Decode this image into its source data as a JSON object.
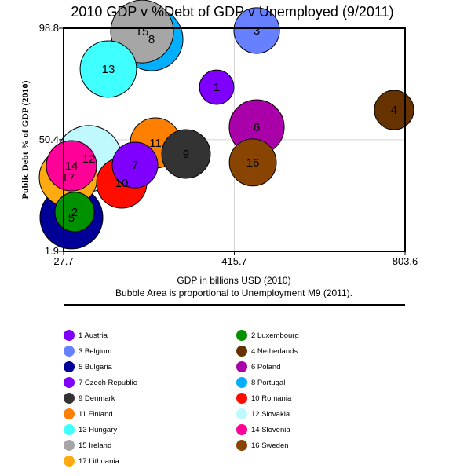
{
  "chart_data": {
    "type": "scatter",
    "subtype": "bubble",
    "title": "2010 GDP v %Debt of GDP v Unemployed (9/2011)",
    "xlabel": "GDP in billions USD (2010)",
    "xlabel_note": "Bubble Area is proportional to Unemployment M9 (2011).",
    "ylabel": "Public Debt % of GDP (2010)",
    "xlim": [
      27.7,
      803.6
    ],
    "ylim": [
      1.9,
      98.8
    ],
    "xticks": [
      "27.7",
      "415.7",
      "803.6"
    ],
    "yticks": [
      "1.9",
      "50.4",
      "98.8"
    ],
    "grid": true,
    "legend_placement": "bottom",
    "size_variable": "Unemployment M9 (2011), % (approximate)",
    "points": [
      {
        "id": 1,
        "name": "Austria",
        "gdp": 375.5,
        "debt": 73.2,
        "unemployment": 4.5,
        "color": "#7f00ff"
      },
      {
        "id": 2,
        "name": "Luxembourg",
        "gdp": 52.7,
        "debt": 19.0,
        "unemployment": 5.9,
        "color": "#009100"
      },
      {
        "id": 3,
        "name": "Belgium",
        "gdp": 466.5,
        "debt": 97.8,
        "unemployment": 7.9,
        "color": "#6680ff"
      },
      {
        "id": 4,
        "name": "Netherlands",
        "gdp": 778.6,
        "debt": 63.3,
        "unemployment": 5.9,
        "color": "#663300"
      },
      {
        "id": 5,
        "name": "Bulgaria",
        "gdp": 45.5,
        "debt": 16.6,
        "unemployment": 15.0,
        "color": "#000099"
      },
      {
        "id": 6,
        "name": "Poland",
        "gdp": 466.5,
        "debt": 55.8,
        "unemployment": 11.5,
        "color": "#aa00aa"
      },
      {
        "id": 7,
        "name": "Czech Republic",
        "gdp": 190.0,
        "debt": 39.4,
        "unemployment": 7.9,
        "color": "#8000ff"
      },
      {
        "id": 8,
        "name": "Portugal",
        "gdp": 227.5,
        "debt": 94.0,
        "unemployment": 15.0,
        "color": "#00b0ff"
      },
      {
        "id": 9,
        "name": "Denmark",
        "gdp": 305.9,
        "debt": 44.2,
        "unemployment": 9.0,
        "color": "#333333"
      },
      {
        "id": 10,
        "name": "Romania",
        "gdp": 159.7,
        "debt": 31.6,
        "unemployment": 9.6,
        "color": "#ff0d00"
      },
      {
        "id": 11,
        "name": "Finland",
        "gdp": 236.4,
        "debt": 49.0,
        "unemployment": 9.6,
        "color": "#ff7f00"
      },
      {
        "id": 12,
        "name": "Slovakia",
        "gdp": 84.8,
        "debt": 42.2,
        "unemployment": 16.5,
        "color": "#bff9ff"
      },
      {
        "id": 13,
        "name": "Hungary",
        "gdp": 129.4,
        "debt": 81.1,
        "unemployment": 12.1,
        "color": "#40ffff"
      },
      {
        "id": 14,
        "name": "Slovenia",
        "gdp": 45.5,
        "debt": 39.1,
        "unemployment": 9.6,
        "color": "#ff0099"
      },
      {
        "id": 15,
        "name": "Ireland",
        "gdp": 206.1,
        "debt": 97.4,
        "unemployment": 15.0,
        "color": "#a6a6a6"
      },
      {
        "id": 16,
        "name": "Sweden",
        "gdp": 457.7,
        "debt": 40.5,
        "unemployment": 8.4,
        "color": "#884400"
      },
      {
        "id": 17,
        "name": "Lithuania",
        "gdp": 38.4,
        "debt": 34.0,
        "unemployment": 12.8,
        "color": "#ffaa11"
      }
    ],
    "legend": {
      "left_column": [
        1,
        3,
        5,
        7,
        9,
        11,
        13,
        15,
        17
      ],
      "right_column": [
        2,
        4,
        6,
        8,
        10,
        12,
        14,
        16
      ]
    }
  }
}
